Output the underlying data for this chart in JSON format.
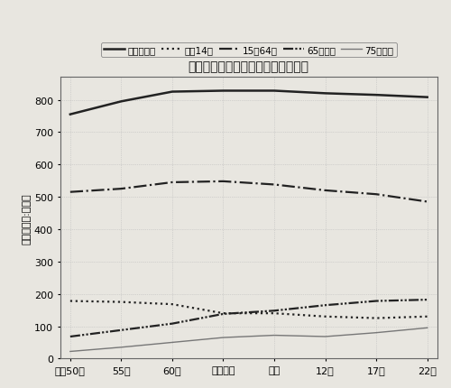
{
  "title": "年齢区分別人口の推移と将来推計表",
  "ylabel": "人口（単位:千人）",
  "x_labels": [
    "昭和50年",
    "55年",
    "60年",
    "平成２年",
    "７年",
    "12年",
    "17年",
    "22年"
  ],
  "x_values": [
    0,
    1,
    2,
    3,
    4,
    5,
    6,
    7
  ],
  "series_order": [
    "総人口",
    "0_14歳",
    "15_64歳",
    "65歳以上",
    "75歳以上"
  ],
  "series": {
    "総人口": {
      "values": [
        755,
        795,
        825,
        828,
        828,
        820,
        815,
        808
      ],
      "color": "#222222",
      "linestyle": "solid",
      "linewidth": 1.8,
      "label": "総　人　口"
    },
    "0_14歳": {
      "values": [
        178,
        175,
        168,
        140,
        140,
        130,
        125,
        130
      ],
      "color": "#222222",
      "linestyle": "dotted",
      "linewidth": 1.6,
      "label": "０～14歳"
    },
    "15_64歳": {
      "values": [
        515,
        525,
        545,
        548,
        538,
        520,
        508,
        485
      ],
      "color": "#222222",
      "linestyle": "dashdot",
      "linewidth": 1.6,
      "label": "15～64歳"
    },
    "65歳以上": {
      "values": [
        68,
        88,
        108,
        138,
        148,
        165,
        178,
        182
      ],
      "color": "#222222",
      "linestyle": "dashdotdot",
      "linewidth": 1.6,
      "label": "65歳以上"
    },
    "75歳以上": {
      "values": [
        22,
        35,
        50,
        65,
        72,
        68,
        80,
        95
      ],
      "color": "#777777",
      "linestyle": "solid",
      "linewidth": 1.0,
      "label": "75歳以上"
    }
  },
  "ylim": [
    0,
    870
  ],
  "yticks": [
    0,
    100,
    200,
    300,
    400,
    500,
    600,
    700,
    800
  ],
  "grid_color": "#bbbbbb",
  "background_color": "#e8e6e0",
  "plot_bg_color": "#e8e6e0",
  "legend_fontsize": 7.5,
  "title_fontsize": 10,
  "axis_fontsize": 8
}
